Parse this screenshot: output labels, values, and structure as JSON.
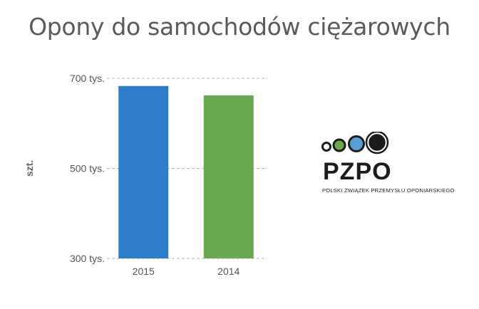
{
  "chart_data": {
    "type": "bar",
    "title": "Opony do samochodów ciężarowych",
    "ylabel": "szt.",
    "xlabel": "",
    "categories": [
      "2015",
      "2014"
    ],
    "values": [
      683000,
      662000
    ],
    "colors": [
      "#2f7dc8",
      "#6aa84f"
    ],
    "ylim": [
      300000,
      700000
    ],
    "yticks": [
      {
        "value": 300000,
        "label": "300 tys."
      },
      {
        "value": 500000,
        "label": "500 tys."
      },
      {
        "value": 700000,
        "label": "700 tys."
      }
    ],
    "grid": true
  },
  "logo": {
    "name": "PZPO",
    "subtitle": "POLSKI ZWIĄZEK PRZEMYSŁU OPONIARSKIEGO",
    "circle_colors": [
      "#1c1c1c",
      "#6aa84f",
      "#5a9fd4",
      "#1c1c1c"
    ]
  }
}
